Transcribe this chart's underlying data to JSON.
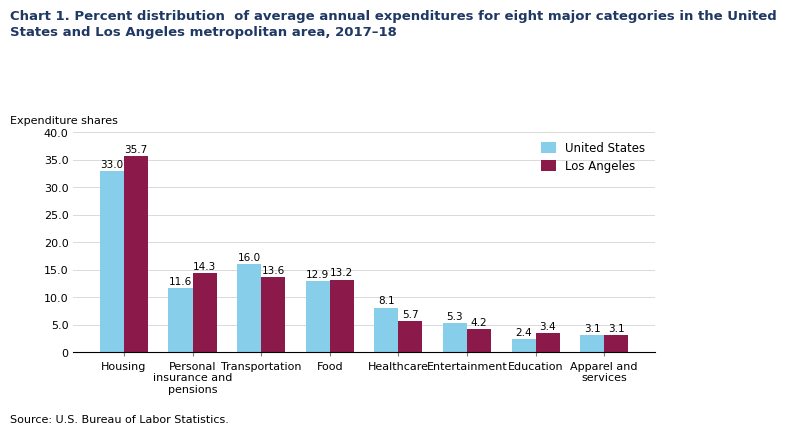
{
  "title_line1": "Chart 1. Percent distribution  of average annual expenditures for eight major categories in the United",
  "title_line2": "States and Los Angeles metropolitan area, 2017–18",
  "ylabel": "Expenditure shares",
  "source": "Source: U.S. Bureau of Labor Statistics.",
  "categories": [
    "Housing",
    "Personal\ninsurance and\npensions",
    "Transportation",
    "Food",
    "Healthcare",
    "Entertainment",
    "Education",
    "Apparel and\nservices"
  ],
  "us_values": [
    33.0,
    11.6,
    16.0,
    12.9,
    8.1,
    5.3,
    2.4,
    3.1
  ],
  "la_values": [
    35.7,
    14.3,
    13.6,
    13.2,
    5.7,
    4.2,
    3.4,
    3.1
  ],
  "us_color": "#87CEEB",
  "la_color": "#8B1A4A",
  "us_label": "United States",
  "la_label": "Los Angeles",
  "ylim": [
    0,
    40.0
  ],
  "yticks": [
    0,
    5.0,
    10.0,
    15.0,
    20.0,
    25.0,
    30.0,
    35.0,
    40.0
  ],
  "ytick_labels": [
    "0",
    "5.0",
    "10.0",
    "15.0",
    "20.0",
    "25.0",
    "30.0",
    "35.0",
    "40.0"
  ],
  "bar_width": 0.35,
  "title_fontsize": 9.5,
  "tick_fontsize": 8,
  "value_fontsize": 7.5,
  "legend_fontsize": 8.5,
  "source_fontsize": 8,
  "ylabel_fontsize": 8,
  "title_color": "#1F3864"
}
